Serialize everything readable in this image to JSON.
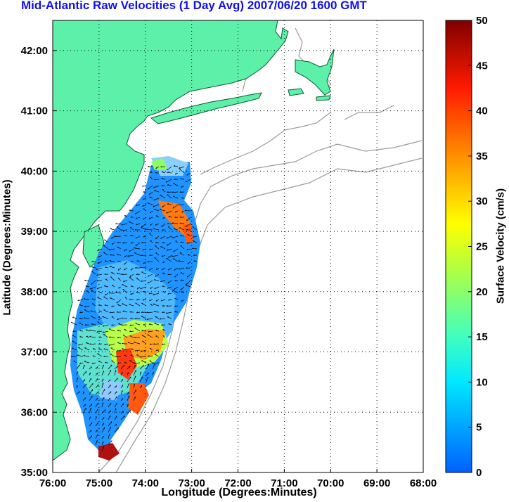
{
  "chart_data": {
    "type": "map",
    "title": "Mid-Atlantic Raw Velocities (1 Day Avg) 2007/06/20 1600 GMT",
    "xlabel": "Longitude (Degrees:Minutes)",
    "ylabel": "Latitude (Degrees:Minutes)",
    "x_ticks": [
      "76:00",
      "75:00",
      "74:00",
      "73:00",
      "72:00",
      "71:00",
      "70:00",
      "69:00",
      "68:00"
    ],
    "y_ticks": [
      "35:00",
      "36:00",
      "37:00",
      "38:00",
      "39:00",
      "40:00",
      "41:00",
      "42:00"
    ],
    "xlim": [
      -76,
      -68
    ],
    "ylim": [
      35,
      42.5
    ],
    "grid": true,
    "colorbar": {
      "label": "Surface Velocity (cm/s)",
      "ticks": [
        "0",
        "5",
        "10",
        "15",
        "20",
        "25",
        "30",
        "35",
        "40",
        "45",
        "50"
      ],
      "range": [
        0,
        50
      ],
      "colormap": "jet"
    },
    "colors": {
      "land": "#5cf0a8",
      "title": "#1010ee",
      "bathymetry": "#909090",
      "coast": "#006a3a"
    }
  }
}
